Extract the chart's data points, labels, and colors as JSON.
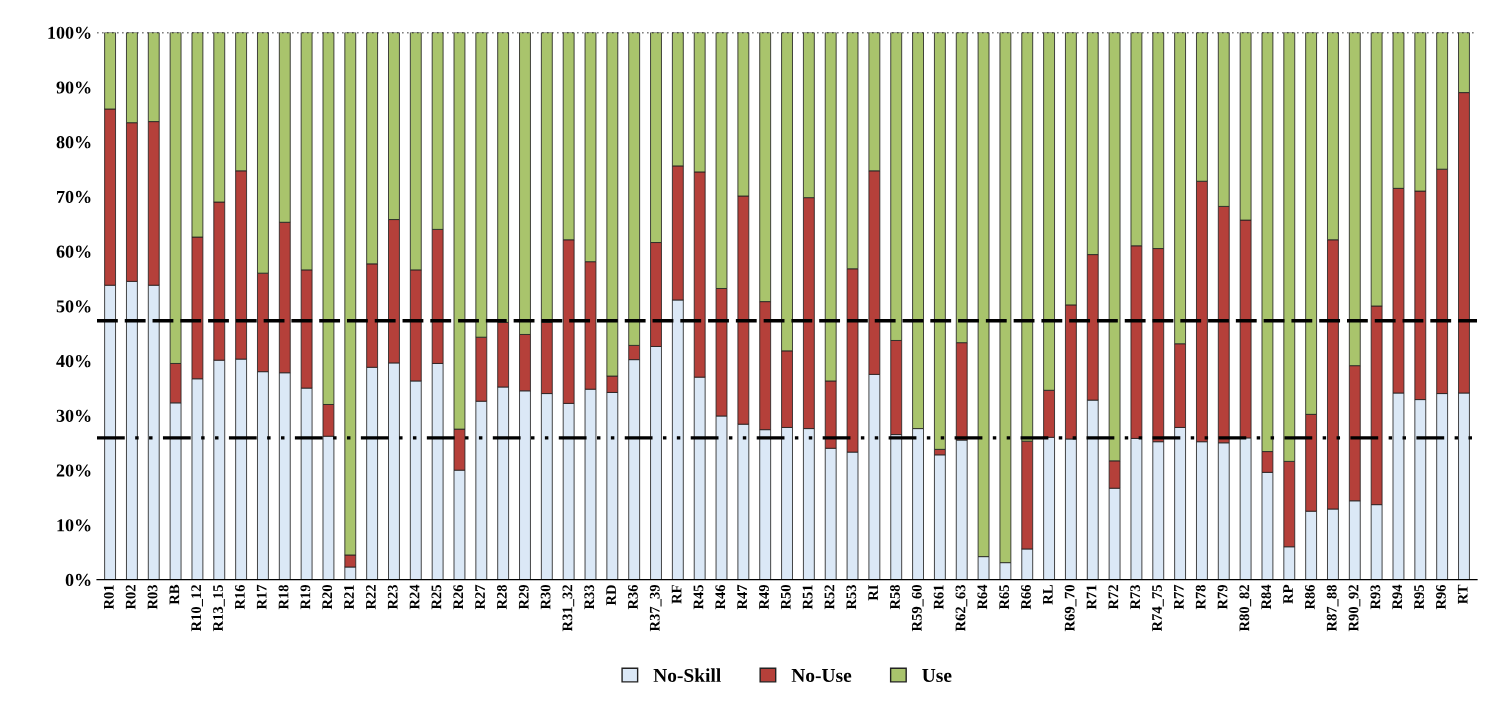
{
  "chart_data": {
    "type": "bar",
    "stacked": true,
    "categories": [
      "R01",
      "R02",
      "R03",
      "RB",
      "R10_12",
      "R13_15",
      "R16",
      "R17",
      "R18",
      "R19",
      "R20",
      "R21",
      "R22",
      "R23",
      "R24",
      "R25",
      "R26",
      "R27",
      "R28",
      "R29",
      "R30",
      "R31_32",
      "R33",
      "RD",
      "R36",
      "R37_39",
      "RF",
      "R45",
      "R46",
      "R47",
      "R49",
      "R50",
      "R51",
      "R52",
      "R53",
      "RI",
      "R58",
      "R59_60",
      "R61",
      "R62_63",
      "R64",
      "R65",
      "R66",
      "RL",
      "R69_70",
      "R71",
      "R72",
      "R73",
      "R74_75",
      "R77",
      "R78",
      "R79",
      "R80_82",
      "R84",
      "RP",
      "R86",
      "R87_88",
      "R90_92",
      "R93",
      "R94",
      "R95",
      "R96",
      "RT"
    ],
    "series": [
      {
        "name": "No-Skill",
        "color": "#dbe8f6",
        "values": [
          53.8,
          54.5,
          53.8,
          32.3,
          36.7,
          40.1,
          40.3,
          38,
          37.8,
          35,
          26.2,
          2.3,
          38.8,
          39.6,
          36.3,
          39.5,
          20,
          32.6,
          35.2,
          34.5,
          34,
          32.2,
          34.8,
          34.2,
          40.2,
          42.6,
          51.1,
          37,
          29.9,
          28.4,
          27.4,
          27.8,
          27.6,
          24,
          23.3,
          37.5,
          26.5,
          27.6,
          22.8,
          25.5,
          4.2,
          3.1,
          5.6,
          26,
          25.7,
          32.8,
          16.7,
          25.8,
          25.2,
          27.8,
          25.2,
          25,
          25.9,
          19.6,
          6,
          12.5,
          12.9,
          14.4,
          13.7,
          34.1,
          32.9,
          34,
          34.1
        ]
      },
      {
        "name": "No-Use",
        "color": "#b5403a",
        "values": [
          32.2,
          29,
          29.9,
          7.2,
          25.9,
          28.9,
          34.4,
          18,
          27.5,
          21.6,
          5.8,
          2.2,
          18.9,
          26.2,
          20.3,
          24.5,
          7.5,
          11.7,
          11.8,
          10.3,
          13,
          29.9,
          23.3,
          3,
          2.6,
          19,
          24.5,
          37.5,
          23.3,
          41.7,
          23.4,
          14,
          42.2,
          12.3,
          33.5,
          37.2,
          17.2,
          0,
          1,
          17.8,
          0,
          0,
          19.7,
          8.6,
          24.5,
          26.6,
          5,
          35.2,
          35.3,
          15.3,
          47.6,
          43.2,
          39.8,
          3.8,
          15.6,
          17.7,
          49.2,
          24.7,
          36.3,
          37.4,
          38.1,
          41,
          54.9
        ]
      },
      {
        "name": "Use",
        "color": "#a9c46c",
        "values": [
          14,
          16.5,
          16.3,
          60.5,
          37.4,
          31,
          25.3,
          44,
          34.7,
          43.4,
          68,
          95.5,
          42.3,
          34.2,
          43.4,
          36,
          72.5,
          55.7,
          53,
          55.2,
          53,
          37.9,
          41.9,
          62.8,
          57.2,
          38.4,
          24.4,
          25.5,
          46.8,
          29.9,
          49.2,
          58.2,
          30.2,
          63.7,
          43.2,
          25.3,
          56.3,
          72.4,
          76.2,
          56.7,
          95.8,
          96.9,
          74.7,
          65.4,
          49.8,
          40.6,
          78.3,
          39,
          39.5,
          56.9,
          27.2,
          31.8,
          34.3,
          76.6,
          78.4,
          69.8,
          37.9,
          60.9,
          50,
          28.5,
          29,
          25,
          11
        ]
      }
    ],
    "ylim": [
      0,
      100
    ],
    "yticks": [
      {
        "value": 0,
        "label": "0%"
      },
      {
        "value": 10,
        "label": "10%"
      },
      {
        "value": 20,
        "label": "20%"
      },
      {
        "value": 30,
        "label": "30%"
      },
      {
        "value": 40,
        "label": "40%"
      },
      {
        "value": 50,
        "label": "50%"
      },
      {
        "value": 60,
        "label": "60%"
      },
      {
        "value": 70,
        "label": "70%"
      },
      {
        "value": 80,
        "label": "80%"
      },
      {
        "value": 90,
        "label": "90%"
      },
      {
        "value": 100,
        "label": "100%"
      }
    ],
    "ref_lines": [
      {
        "axis": "y",
        "value": 47.3,
        "color": "#000000",
        "line_style": "dashed"
      },
      {
        "axis": "y",
        "value": 25.9,
        "color": "#000000",
        "line_style": "dashdotdot"
      },
      {
        "axis": "y",
        "value": 100,
        "color": "#000000",
        "line_style": "dotted"
      }
    ],
    "grid": false,
    "legend": "bottom"
  }
}
